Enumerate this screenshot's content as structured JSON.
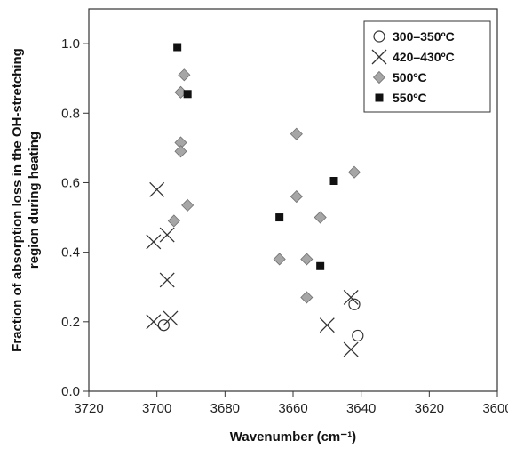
{
  "chart_data": {
    "type": "scatter",
    "xlabel": "Wavenumber (cm⁻¹)",
    "ylabel": "Fraction of absorption loss in the OH-stretching region during heating",
    "ylabel_lines": [
      "Fraction of absorption loss in the OH-stretching",
      "region during heating"
    ],
    "xlim": [
      3720,
      3600
    ],
    "ylim": [
      0,
      1.1
    ],
    "x_reversed": true,
    "x_ticks": [
      3720,
      3700,
      3680,
      3660,
      3640,
      3620,
      3600
    ],
    "y_ticks": [
      "0.0",
      "0.2",
      "0.4",
      "0.6",
      "0.8",
      "1.0"
    ],
    "grid": false,
    "legend_position": "top-right",
    "series": [
      {
        "name": "300–350ºC",
        "marker": "open-circle",
        "color": "#333333",
        "x": [
          3698,
          3642,
          3641
        ],
        "y": [
          0.19,
          0.25,
          0.16
        ]
      },
      {
        "name": "420–430ºC",
        "marker": "x",
        "color": "#333333",
        "x": [
          3700,
          3701,
          3697,
          3697,
          3701,
          3696,
          3643,
          3650,
          3643
        ],
        "y": [
          0.58,
          0.43,
          0.45,
          0.32,
          0.2,
          0.21,
          0.27,
          0.19,
          0.12
        ]
      },
      {
        "name": "500ºC",
        "marker": "diamond",
        "color": "#a6a6a6",
        "x": [
          3692,
          3693,
          3693,
          3693,
          3695,
          3691,
          3659,
          3659,
          3652,
          3656,
          3664,
          3656,
          3642
        ],
        "y": [
          0.91,
          0.86,
          0.715,
          0.69,
          0.49,
          0.535,
          0.74,
          0.56,
          0.5,
          0.38,
          0.38,
          0.27,
          0.63
        ]
      },
      {
        "name": "550ºC",
        "marker": "filled-square",
        "color": "#111111",
        "x": [
          3694,
          3691,
          3664,
          3648,
          3652
        ],
        "y": [
          0.99,
          0.855,
          0.5,
          0.605,
          0.36
        ]
      }
    ]
  }
}
